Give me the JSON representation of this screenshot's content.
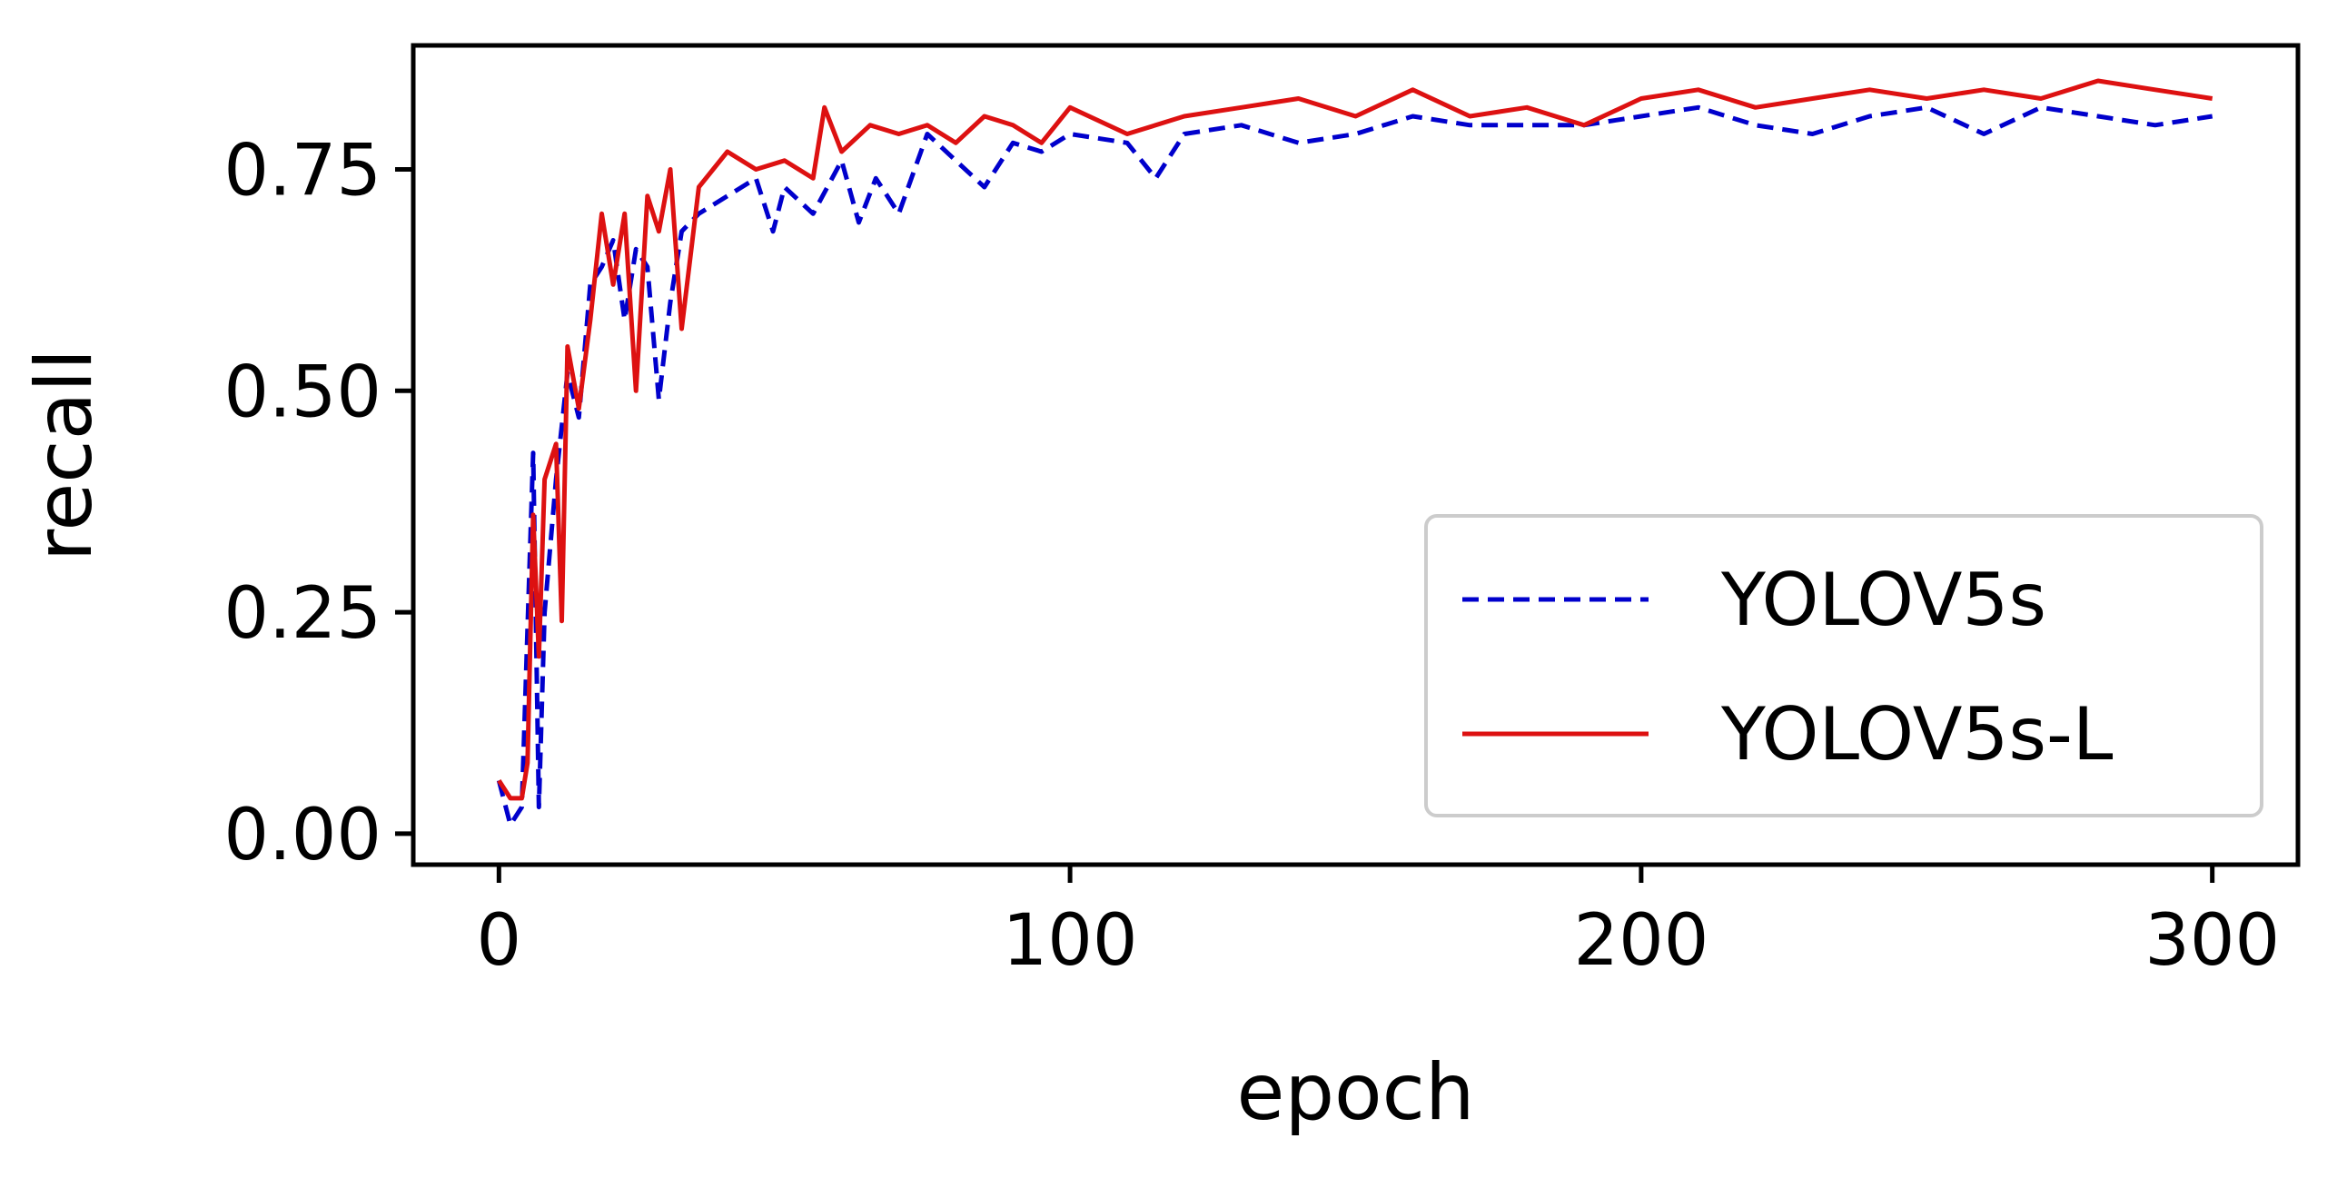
{
  "chart_data": {
    "type": "line",
    "title": "",
    "xlabel": "epoch",
    "ylabel": "recall",
    "xlim": [
      -15,
      315
    ],
    "ylim": [
      -0.035,
      0.89
    ],
    "xticks": [
      0,
      100,
      200,
      300
    ],
    "xtick_labels": [
      "0",
      "100",
      "200",
      "300"
    ],
    "yticks": [
      0.0,
      0.25,
      0.5,
      0.75
    ],
    "ytick_labels": [
      "0.00",
      "0.25",
      "0.50",
      "0.75"
    ],
    "grid": false,
    "legend_position": "lower-right",
    "series": [
      {
        "name": "YOLOV5s",
        "color": "#0000cc",
        "style": "dashed",
        "x": [
          0,
          2,
          4,
          6,
          7,
          8,
          10,
          12,
          14,
          16,
          18,
          20,
          22,
          24,
          26,
          28,
          30,
          32,
          35,
          40,
          45,
          48,
          50,
          55,
          60,
          63,
          66,
          70,
          75,
          80,
          85,
          90,
          95,
          100,
          110,
          115,
          120,
          130,
          140,
          150,
          160,
          170,
          180,
          190,
          200,
          210,
          220,
          230,
          240,
          250,
          260,
          270,
          280,
          290,
          300
        ],
        "values": [
          0.06,
          0.01,
          0.03,
          0.43,
          0.03,
          0.25,
          0.4,
          0.52,
          0.47,
          0.62,
          0.64,
          0.67,
          0.58,
          0.66,
          0.64,
          0.49,
          0.6,
          0.68,
          0.7,
          0.72,
          0.74,
          0.68,
          0.73,
          0.7,
          0.76,
          0.69,
          0.74,
          0.7,
          0.79,
          0.76,
          0.73,
          0.78,
          0.77,
          0.79,
          0.78,
          0.74,
          0.79,
          0.8,
          0.78,
          0.79,
          0.81,
          0.8,
          0.8,
          0.8,
          0.81,
          0.82,
          0.8,
          0.79,
          0.81,
          0.82,
          0.79,
          0.82,
          0.81,
          0.8,
          0.81
        ]
      },
      {
        "name": "YOLOV5s-L",
        "color": "#dd1111",
        "style": "solid",
        "x": [
          0,
          2,
          4,
          5,
          6,
          7,
          8,
          10,
          11,
          12,
          14,
          16,
          18,
          20,
          22,
          24,
          26,
          28,
          30,
          32,
          35,
          40,
          45,
          50,
          55,
          57,
          60,
          65,
          70,
          75,
          80,
          85,
          90,
          95,
          100,
          110,
          120,
          130,
          140,
          150,
          160,
          170,
          180,
          190,
          200,
          210,
          220,
          230,
          240,
          250,
          260,
          270,
          280,
          290,
          300
        ],
        "values": [
          0.06,
          0.04,
          0.04,
          0.08,
          0.36,
          0.2,
          0.4,
          0.44,
          0.24,
          0.55,
          0.48,
          0.58,
          0.7,
          0.62,
          0.7,
          0.5,
          0.72,
          0.68,
          0.75,
          0.57,
          0.73,
          0.77,
          0.75,
          0.76,
          0.74,
          0.82,
          0.77,
          0.8,
          0.79,
          0.8,
          0.78,
          0.81,
          0.8,
          0.78,
          0.82,
          0.79,
          0.81,
          0.82,
          0.83,
          0.81,
          0.84,
          0.81,
          0.82,
          0.8,
          0.83,
          0.84,
          0.82,
          0.83,
          0.84,
          0.83,
          0.84,
          0.83,
          0.85,
          0.84,
          0.83
        ]
      }
    ]
  }
}
